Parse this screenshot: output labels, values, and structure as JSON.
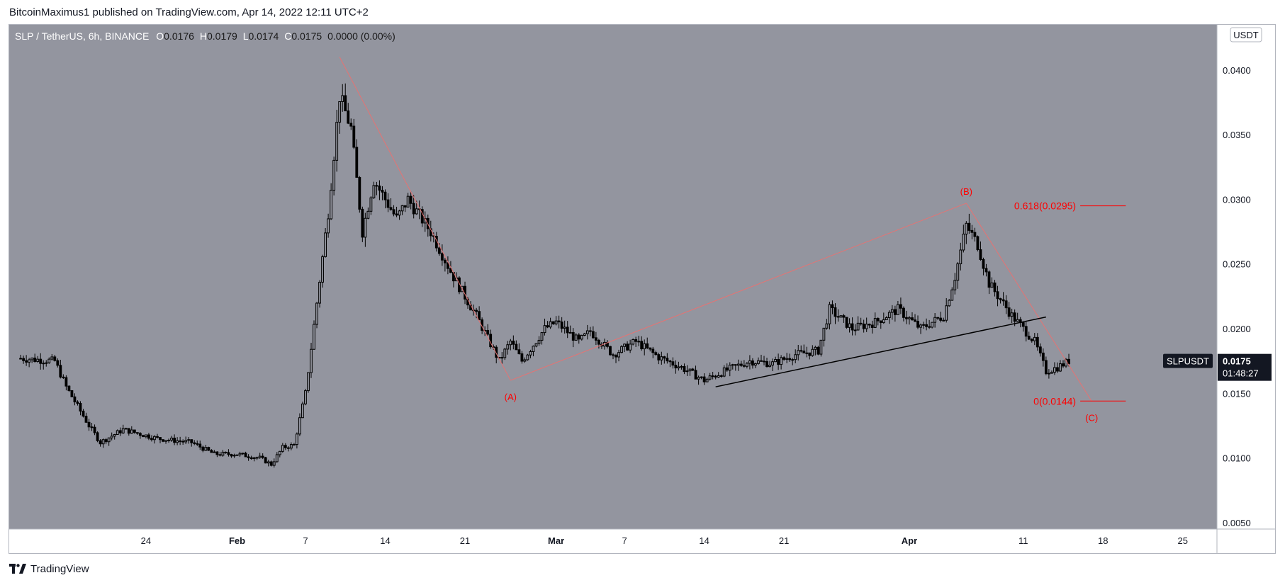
{
  "header": {
    "publisher_line": "BitcoinMaximus1 published on TradingView.com, Apr 14, 2022 12:11 UTC+2"
  },
  "legend": {
    "symbol": "SLP / TetherUS, 6h, BINANCE",
    "open_label": "O",
    "open": "0.0176",
    "high_label": "H",
    "high": "0.0179",
    "low_label": "L",
    "low": "0.0174",
    "close_label": "C",
    "close": "0.0175",
    "change": "0.0000 (0.00%)"
  },
  "currency_badge": "USDT",
  "price_tag": {
    "ticker": "SLPUSDT",
    "price": "0.0175",
    "countdown": "01:48:27"
  },
  "footer": {
    "brand": "TradingView",
    "logo_icon": "tradingview-logo-icon"
  },
  "colors": {
    "plot_bg": "#93959f",
    "candle": "#000000",
    "annotation": "#ff0000",
    "wave_line": "#e57373",
    "axis_text": "#131722"
  },
  "chart_data": {
    "type": "candlestick",
    "timeframe": "6h",
    "x_ticks": [
      "24",
      "Feb",
      "7",
      "14",
      "21",
      "Mar",
      "7",
      "14",
      "21",
      "Apr",
      "11",
      "18",
      "25"
    ],
    "x_tick_dates": [
      "2022-01-24",
      "2022-02-01",
      "2022-02-07",
      "2022-02-14",
      "2022-02-21",
      "2022-03-01",
      "2022-03-07",
      "2022-03-14",
      "2022-03-21",
      "2022-04-01",
      "2022-04-11",
      "2022-04-18",
      "2022-04-25"
    ],
    "y_ticks": [
      "0.0400",
      "0.0350",
      "0.0300",
      "0.0250",
      "0.0200",
      "0.0150",
      "0.0100",
      "0.0050"
    ],
    "y_range": [
      0.0045,
      0.0435
    ],
    "x_range": [
      "2022-01-12",
      "2022-04-28"
    ],
    "price_path": [
      [
        "2022-01-13",
        0.0177
      ],
      [
        "2022-01-16",
        0.0175
      ],
      [
        "2022-01-17",
        0.0155
      ],
      [
        "2022-01-19",
        0.0125
      ],
      [
        "2022-01-20",
        0.0112
      ],
      [
        "2022-01-22",
        0.0122
      ],
      [
        "2022-01-25",
        0.0115
      ],
      [
        "2022-01-28",
        0.0112
      ],
      [
        "2022-01-30",
        0.0103
      ],
      [
        "2022-02-01",
        0.0103
      ],
      [
        "2022-02-03",
        0.01
      ],
      [
        "2022-02-04",
        0.0095
      ],
      [
        "2022-02-05",
        0.0108
      ],
      [
        "2022-02-06",
        0.011
      ],
      [
        "2022-02-07",
        0.015
      ],
      [
        "2022-02-08",
        0.022
      ],
      [
        "2022-02-09",
        0.029
      ],
      [
        "2022-02-10",
        0.038
      ],
      [
        "2022-02-11",
        0.0355
      ],
      [
        "2022-02-12",
        0.0275
      ],
      [
        "2022-02-13",
        0.0315
      ],
      [
        "2022-02-15",
        0.0285
      ],
      [
        "2022-02-16",
        0.03
      ],
      [
        "2022-02-18",
        0.0275
      ],
      [
        "2022-02-20",
        0.024
      ],
      [
        "2022-02-22",
        0.021
      ],
      [
        "2022-02-24",
        0.0175
      ],
      [
        "2022-02-25",
        0.019
      ],
      [
        "2022-02-26",
        0.0175
      ],
      [
        "2022-02-28",
        0.02
      ],
      [
        "2022-03-01",
        0.0205
      ],
      [
        "2022-03-03",
        0.019
      ],
      [
        "2022-03-04",
        0.0198
      ],
      [
        "2022-03-06",
        0.018
      ],
      [
        "2022-03-08",
        0.019
      ],
      [
        "2022-03-10",
        0.0178
      ],
      [
        "2022-03-12",
        0.017
      ],
      [
        "2022-03-14",
        0.016
      ],
      [
        "2022-03-16",
        0.0168
      ],
      [
        "2022-03-18",
        0.0175
      ],
      [
        "2022-03-20",
        0.0173
      ],
      [
        "2022-03-22",
        0.018
      ],
      [
        "2022-03-24",
        0.0183
      ],
      [
        "2022-03-25",
        0.0215
      ],
      [
        "2022-03-27",
        0.02
      ],
      [
        "2022-03-29",
        0.0205
      ],
      [
        "2022-03-31",
        0.0215
      ],
      [
        "2022-04-02",
        0.02
      ],
      [
        "2022-04-04",
        0.021
      ],
      [
        "2022-04-05",
        0.024
      ],
      [
        "2022-04-06",
        0.028
      ],
      [
        "2022-04-07",
        0.0265
      ],
      [
        "2022-04-08",
        0.0235
      ],
      [
        "2022-04-10",
        0.021
      ],
      [
        "2022-04-12",
        0.019
      ],
      [
        "2022-04-13",
        0.0167
      ],
      [
        "2022-04-14",
        0.017
      ],
      [
        "2022-04-15",
        0.0175
      ]
    ],
    "wave_points": [
      {
        "date": "2022-02-10",
        "price": 0.041,
        "label": ""
      },
      {
        "date": "2022-02-25",
        "price": 0.016,
        "label": "(A)"
      },
      {
        "date": "2022-04-06",
        "price": 0.0297,
        "label": "(B)"
      },
      {
        "date": "2022-04-17",
        "price": 0.0144,
        "label": "(C)"
      }
    ],
    "support_line": {
      "from": [
        "2022-03-15",
        0.0155
      ],
      "to": [
        "2022-04-13",
        0.0209
      ]
    },
    "fib_levels": [
      {
        "label": "0.618(0.0295)",
        "price": 0.0295,
        "from": "2022-04-16",
        "to": "2022-04-20"
      },
      {
        "label": "0(0.0144)",
        "price": 0.0144,
        "from": "2022-04-16",
        "to": "2022-04-20"
      }
    ]
  }
}
